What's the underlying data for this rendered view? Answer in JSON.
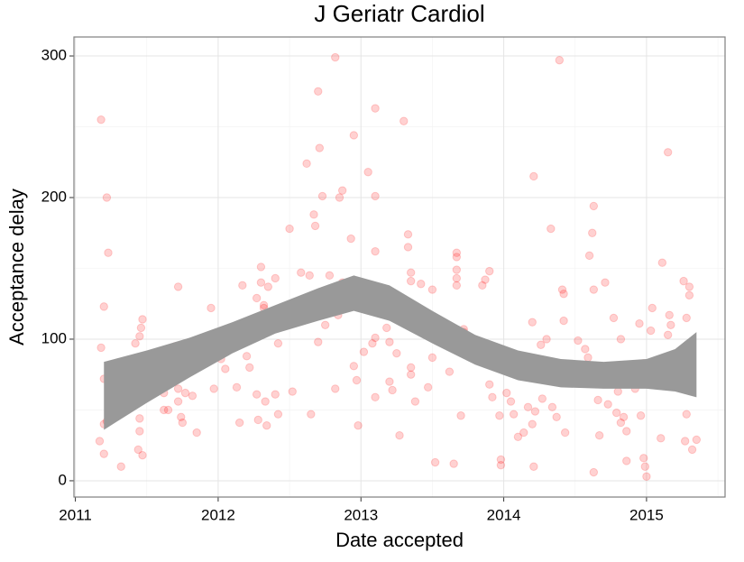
{
  "chart_data": {
    "type": "scatter",
    "title": "J Geriatr Cardiol",
    "x_label": "Date accepted",
    "y_label": "Acceptance delay",
    "xlim": [
      2010.99,
      2015.55
    ],
    "xticks": [
      2011,
      2012,
      2013,
      2014,
      2015
    ],
    "minor_xticks": [
      2011.5,
      2012.5,
      2013.5,
      2014.5,
      2015.5
    ],
    "ylim": [
      -11.5,
      313.4
    ],
    "yticks": [
      0,
      100,
      200,
      300
    ],
    "minor_yticks": [
      50,
      150,
      250
    ],
    "grid": true,
    "color": "#ff0000",
    "point_alpha": 0.18,
    "x": [
      2011.18,
      2011.22,
      2011.23,
      2011.2,
      2011.18,
      2011.2,
      2011.22,
      2011.2,
      2011.17,
      2011.2,
      2011.32,
      2011.42,
      2011.45,
      2011.46,
      2011.47,
      2011.42,
      2011.45,
      2011.45,
      2011.44,
      2011.47,
      2011.62,
      2011.62,
      2011.65,
      2011.7,
      2011.72,
      2011.72,
      2011.72,
      2011.74,
      2011.75,
      2011.77,
      2011.78,
      2011.82,
      2011.85,
      2011.87,
      2011.95,
      2011.97,
      2012.02,
      2012.05,
      2012.12,
      2012.13,
      2012.15,
      2012.17,
      2012.2,
      2012.22,
      2012.27,
      2012.27,
      2012.28,
      2012.3,
      2012.3,
      2012.32,
      2012.32,
      2012.3,
      2012.33,
      2012.34,
      2012.35,
      2012.4,
      2012.42,
      2012.42,
      2012.4,
      2012.42,
      2012.5,
      2012.52,
      2012.58,
      2012.62,
      2012.64,
      2012.65,
      2012.67,
      2012.68,
      2012.7,
      2012.71,
      2012.7,
      2012.73,
      2012.75,
      2012.78,
      2012.82,
      2012.82,
      2012.84,
      2012.85,
      2012.87,
      2012.87,
      2012.9,
      2012.93,
      2012.95,
      2012.95,
      2012.97,
      2012.98,
      2012.98,
      2013.02,
      2013.05,
      2013.08,
      2013.1,
      2013.1,
      2013.1,
      2013.1,
      2013.1,
      2013.18,
      2013.2,
      2013.2,
      2013.22,
      2013.25,
      2013.27,
      2013.3,
      2013.33,
      2013.33,
      2013.35,
      2013.35,
      2013.35,
      2013.35,
      2013.38,
      2013.42,
      2013.45,
      2013.47,
      2013.5,
      2013.52,
      2013.5,
      2013.55,
      2013.55,
      2013.62,
      2013.65,
      2013.67,
      2013.67,
      2013.67,
      2013.67,
      2013.67,
      2013.7,
      2013.72,
      2013.72,
      2013.85,
      2013.87,
      2013.9,
      2013.92,
      2013.9,
      2013.92,
      2013.97,
      2013.98,
      2013.98,
      2014.05,
      2014.02,
      2014.07,
      2014.06,
      2014.1,
      2014.14,
      2014.17,
      2014.2,
      2014.2,
      2014.22,
      2014.21,
      2014.21,
      2014.27,
      2014.28,
      2014.26,
      2014.3,
      2014.33,
      2014.34,
      2014.37,
      2014.39,
      2014.41,
      2014.42,
      2014.42,
      2014.44,
      2014.43,
      2014.48,
      2014.52,
      2014.57,
      2014.6,
      2014.62,
      2014.63,
      2014.63,
      2014.59,
      2014.63,
      2014.66,
      2014.67,
      2014.71,
      2014.73,
      2014.77,
      2014.78,
      2014.8,
      2014.79,
      2014.82,
      2014.84,
      2014.82,
      2014.86,
      2014.86,
      2014.9,
      2014.92,
      2014.95,
      2014.96,
      2014.98,
      2014.98,
      2014.99,
      2015.0,
      2015.03,
      2015.04,
      2015.05,
      2015.1,
      2015.11,
      2015.15,
      2015.16,
      2015.17,
      2015.15,
      2015.2,
      2015.26,
      2015.27,
      2015.28,
      2015.28,
      2015.3,
      2015.3,
      2015.32,
      2015.35
    ],
    "values": [
      255,
      200,
      161,
      123,
      94,
      72,
      42,
      40,
      28,
      19,
      10,
      97,
      102,
      108,
      114,
      60,
      44,
      35,
      22,
      18,
      62,
      50,
      50,
      95,
      137,
      65,
      56,
      45,
      41,
      62,
      80,
      60,
      34,
      83,
      122,
      65,
      86,
      79,
      108,
      66,
      41,
      138,
      88,
      80,
      129,
      61,
      43,
      151,
      140,
      124,
      122,
      113,
      56,
      39,
      137,
      143,
      110,
      97,
      61,
      47,
      178,
      63,
      147,
      224,
      145,
      47,
      188,
      180,
      275,
      235,
      98,
      201,
      110,
      145,
      299,
      65,
      117,
      200,
      205,
      140,
      123,
      171,
      81,
      244,
      71,
      39,
      133,
      91,
      218,
      97,
      263,
      201,
      162,
      101,
      59,
      108,
      98,
      70,
      64,
      90,
      32,
      254,
      174,
      165,
      147,
      141,
      80,
      75,
      56,
      139,
      105,
      66,
      135,
      13,
      87,
      113,
      106,
      77,
      12,
      161,
      158,
      149,
      143,
      138,
      46,
      107,
      105,
      138,
      142,
      148,
      94,
      68,
      59,
      46,
      15,
      11,
      56,
      62,
      47,
      76,
      31,
      34,
      52,
      40,
      112,
      49,
      10,
      215,
      58,
      83,
      96,
      100,
      178,
      52,
      45,
      297,
      135,
      132,
      113,
      82,
      34,
      74,
      99,
      93,
      159,
      175,
      194,
      135,
      87,
      6,
      57,
      32,
      140,
      54,
      115,
      80,
      63,
      48,
      41,
      45,
      100,
      35,
      14,
      73,
      65,
      111,
      46,
      83,
      16,
      10,
      3,
      106,
      122,
      68,
      30,
      154,
      232,
      117,
      110,
      103,
      70,
      141,
      28,
      115,
      47,
      137,
      131,
      22,
      29
    ],
    "band": {
      "color": "#999999",
      "x": [
        2011.2,
        2011.5,
        2011.8,
        2012.1,
        2012.4,
        2012.7,
        2012.95,
        2013.2,
        2013.5,
        2013.8,
        2014.1,
        2014.4,
        2014.7,
        2015.0,
        2015.2,
        2015.35
      ],
      "upper": [
        84,
        92,
        101,
        112,
        124,
        136,
        145,
        138,
        120,
        103,
        92,
        86,
        84,
        86,
        93,
        105
      ],
      "lower": [
        36,
        55,
        73,
        90,
        104,
        113,
        120,
        113,
        97,
        82,
        71,
        66,
        65,
        65,
        63,
        59
      ]
    }
  }
}
